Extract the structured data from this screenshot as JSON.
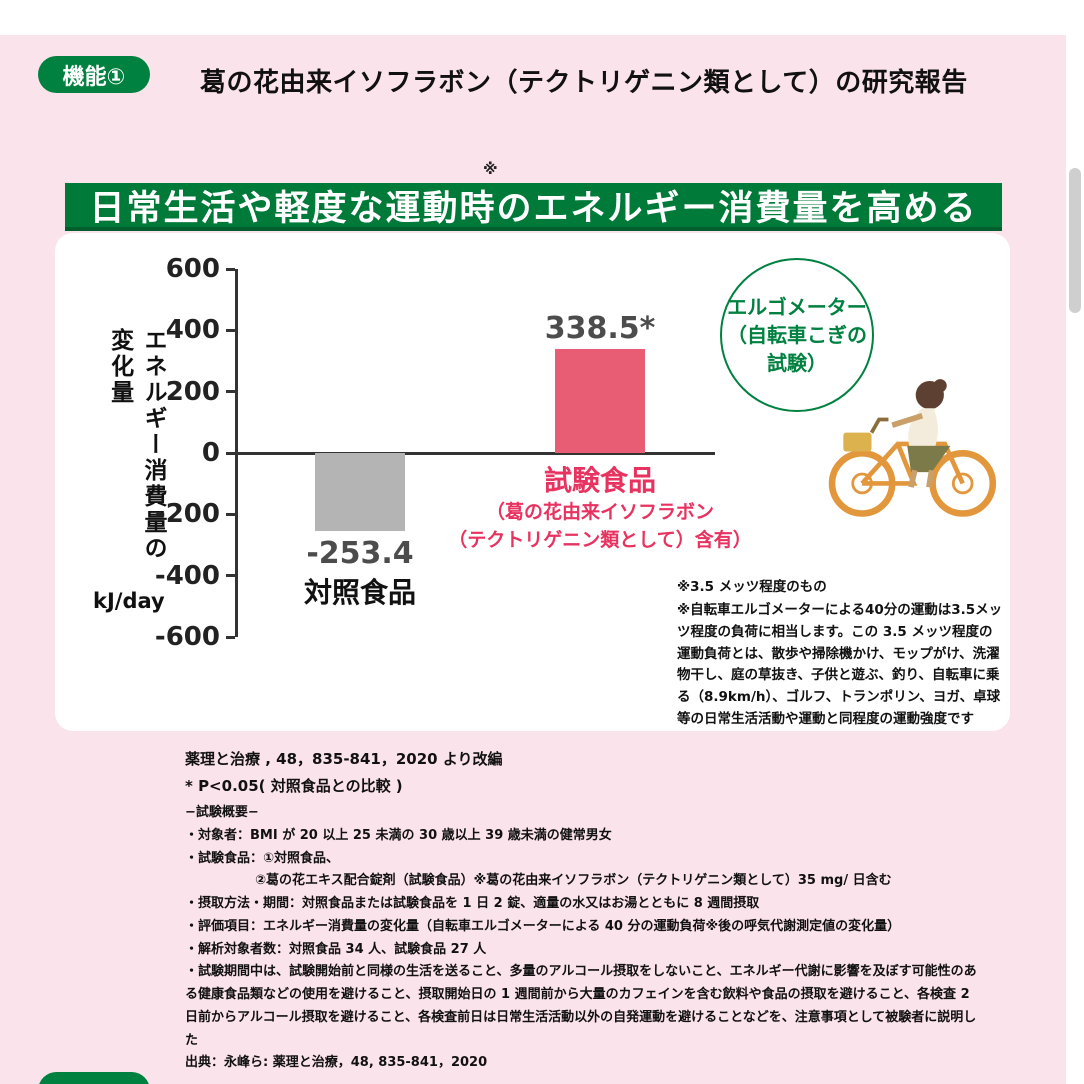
{
  "page": {
    "bg_pink": "#fbe3eb",
    "accent_green": "#008140",
    "accent_pink": "#e8325f",
    "badge_label": "機能①",
    "title": "葛の花由来イソフラボン（テクトリゲニン類として）の研究報告",
    "banner": "日常生活や軽度な運動時のエネルギー消費量を高める",
    "banner_note_mark": "※"
  },
  "chart_data": {
    "type": "bar",
    "title": "日常生活や軽度な運動時のエネルギー消費量を高める",
    "ylabel": "エネルギー消費量の変化量",
    "ylabel_display": "エネルギー消費量の\n変化量",
    "y_unit": "kJ/day",
    "ylim": [
      -600,
      600
    ],
    "yticks": [
      600,
      400,
      200,
      0,
      -200,
      -400,
      -600
    ],
    "categories": [
      "対照食品",
      "試験食品"
    ],
    "values": [
      -253.4,
      338.5
    ],
    "value_labels": [
      "-253.4",
      "338.5*"
    ],
    "bar_colors": [
      "#b4b4b5",
      "#e85d74"
    ],
    "grid": false,
    "legend": "none",
    "test_food_note_lines": [
      "（葛の花由来イソフラボン",
      "（テクトリゲニン類として）含有）"
    ],
    "annotation_lines": [
      "エルゴメーター",
      "（自転車こぎの",
      "試験）"
    ]
  },
  "card_notes": {
    "note1": "※3.5 メッツ程度のもの",
    "note2": "※自転車エルゴメーターによる40分の運動は3.5メッツ程度の負荷に相当します。この 3.5 メッツ程度の運動負荷とは、散歩や掃除機かけ、モップがけ、洗濯物干し、庭の草抜き、子供と遊ぶ、釣り、自転車に乗る（8.9km/h）、ゴルフ、トランポリン、ヨガ、卓球等の日常生活活動や運動と同程度の運動強度です"
  },
  "citation": {
    "line1": "薬理と治療 , 48，835-841，2020 より改編",
    "line2": "* P<0.05( 対照食品との比較 )"
  },
  "overview": {
    "heading": "−試験概要−",
    "items": [
      {
        "text": "・対象者：BMI が 20 以上 25 未満の 30 歳以上 39 歳未満の健常男女"
      },
      {
        "text": "・試験食品：①対照食品、"
      },
      {
        "text": "②葛の花エキス配合錠剤（試験食品）※葛の花由来イソフラボン（テクトリゲニン類として）35 mg/ 日含む"
      },
      {
        "text": "・摂取方法・期間：対照食品または試験食品を 1 日 2 錠、適量の水又はお湯とともに 8 週間摂取"
      },
      {
        "text": "・評価項目：エネルギー消費量の変化量（自転車エルゴメーターによる 40 分の運動負荷※後の呼気代謝測定値の変化量）"
      },
      {
        "text": "・解析対象者数：対照食品 34 人、試験食品 27 人"
      },
      {
        "text": "・試験期間中は、試験開始前と同様の生活を送ること、多量のアルコール摂取をしないこと、エネルギー代謝に影響を及ぼす可能性のある健康食品類などの使用を避けること、摂取開始日の 1 週間前から大量のカフェインを含む飲料や食品の摂取を避けること、各検査 2 日前からアルコール摂取を避けること、各検査前日は日常生活活動以外の自発運動を避けることなどを、注意事項として被験者に説明した"
      },
      {
        "text": "出典：永峰ら: 薬理と治療，48, 835-841，2020"
      }
    ]
  }
}
